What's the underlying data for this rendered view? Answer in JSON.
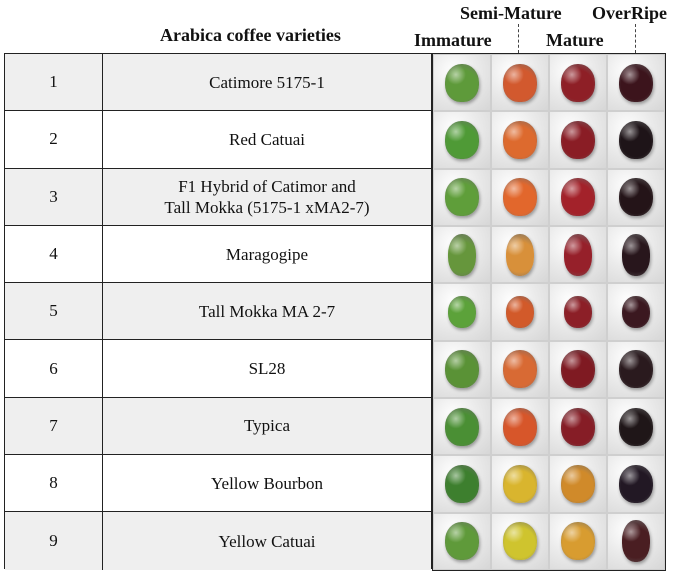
{
  "header": {
    "title": "Arabica coffee varieties",
    "stages": {
      "immature": "Immature",
      "semi_mature": "Semi-Mature",
      "mature": "Mature",
      "overripe": "OverRipe"
    }
  },
  "rows": [
    {
      "num": "1",
      "name": "Catimore 5175-1"
    },
    {
      "num": "2",
      "name": "Red Catuai"
    },
    {
      "num": "3",
      "name": "F1 Hybrid of Catimor and\nTall Mokka (5175-1 xMA2-7)"
    },
    {
      "num": "4",
      "name": "Maragogipe"
    },
    {
      "num": "5",
      "name": "Tall Mokka MA 2-7"
    },
    {
      "num": "6",
      "name": "SL28"
    },
    {
      "num": "7",
      "name": "Typica"
    },
    {
      "num": "8",
      "name": "Yellow Bourbon"
    },
    {
      "num": "9",
      "name": "Yellow Catuai"
    }
  ],
  "berry_colors": [
    [
      "#5e9a3a",
      "#d2592e",
      "#8e1f26",
      "#3c141c"
    ],
    [
      "#4f9a36",
      "#dd6a2e",
      "#8a1d25",
      "#1e1418"
    ],
    [
      "#5f9e3a",
      "#e2672c",
      "#a3222a",
      "#241418"
    ],
    [
      "#66963c",
      "#d8903a",
      "#96202a",
      "#28161c"
    ],
    [
      "#5ca23a",
      "#d25a2a",
      "#8c1f27",
      "#3b1820"
    ],
    [
      "#5a9236",
      "#d86a34",
      "#7f1a22",
      "#2a1a1e"
    ],
    [
      "#4a8f34",
      "#d7562a",
      "#861d26",
      "#1f1618"
    ],
    [
      "#3d7f2e",
      "#d9b52e",
      "#d08a2a",
      "#221824"
    ],
    [
      "#5f9a3a",
      "#cfc42e",
      "#d89c30",
      "#4a1e22"
    ]
  ]
}
